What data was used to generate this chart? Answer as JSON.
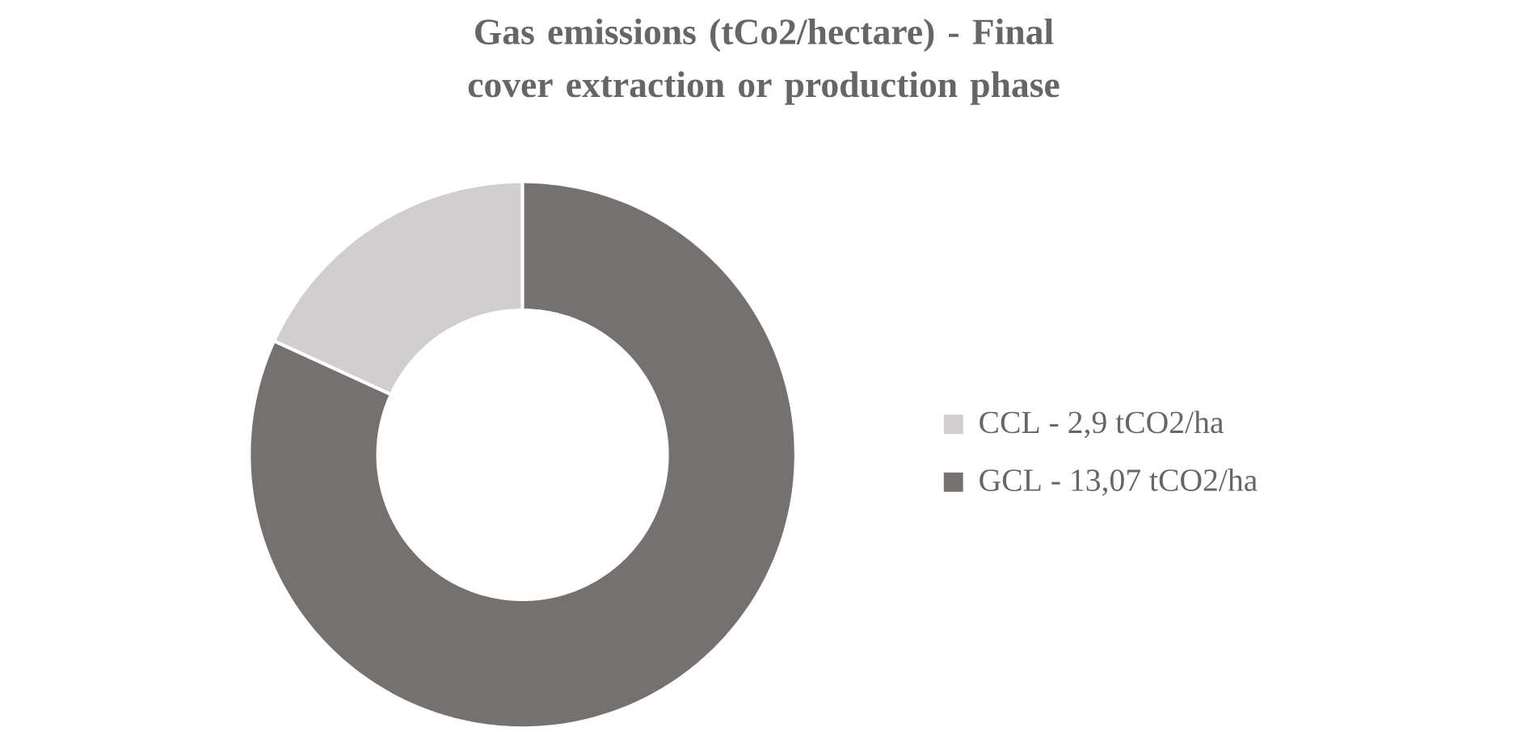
{
  "chart_data": {
    "type": "donut",
    "title": "Gas emissions (tCo2/hectare) - Final cover extraction or production phase",
    "categories": [
      "CCL - 2,9 tCO2/ha",
      "GCL - 13,07 tCO2/ha"
    ],
    "values": [
      18.16,
      81.84
    ],
    "colors": [
      "#d0cece",
      "#767171"
    ],
    "legend": "right"
  }
}
